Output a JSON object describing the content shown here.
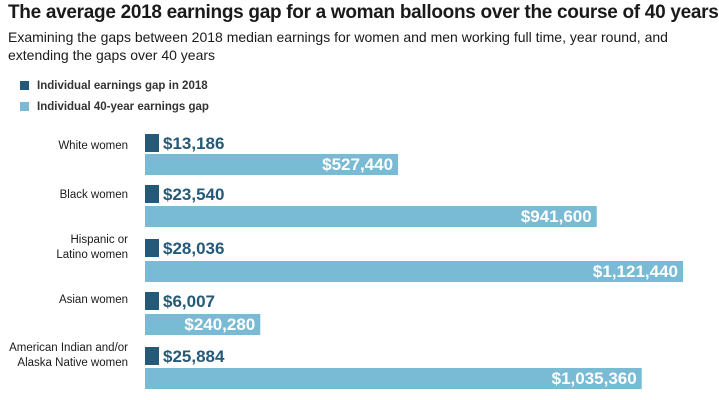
{
  "colors": {
    "gap_2018": "#245a78",
    "gap_40yr": "#79bad5"
  },
  "chart_data": {
    "type": "bar",
    "orientation": "horizontal",
    "title": "The average 2018 earnings gap for a woman balloons over the course of 40 years",
    "subtitle": "Examining the gaps between 2018 median earnings for women and men working full time, year round, and extending the gaps over 40 years",
    "categories": [
      "White women",
      "Black women",
      "Hispanic or Latino women",
      "Asian women",
      "American Indian and/or Alaska Native women"
    ],
    "category_lines": [
      [
        "White women"
      ],
      [
        "Black women"
      ],
      [
        "Hispanic or",
        "Latino women"
      ],
      [
        "Asian women"
      ],
      [
        "American Indian and/or",
        "Alaska Native women"
      ]
    ],
    "series": [
      {
        "name": "Individual earnings gap in 2018",
        "values": [
          13186,
          23540,
          28036,
          6007,
          25884
        ],
        "labels": [
          "$13,186",
          "$23,540",
          "$28,036",
          "$6,007",
          "$25,884"
        ]
      },
      {
        "name": "Individual 40-year earnings gap",
        "values": [
          527440,
          941600,
          1121440,
          240280,
          1035360
        ],
        "labels": [
          "$527,440",
          "$941,600",
          "$1,121,440",
          "$240,280",
          "$1,035,360"
        ]
      }
    ],
    "legend_position": "top-left",
    "grid": false
  }
}
